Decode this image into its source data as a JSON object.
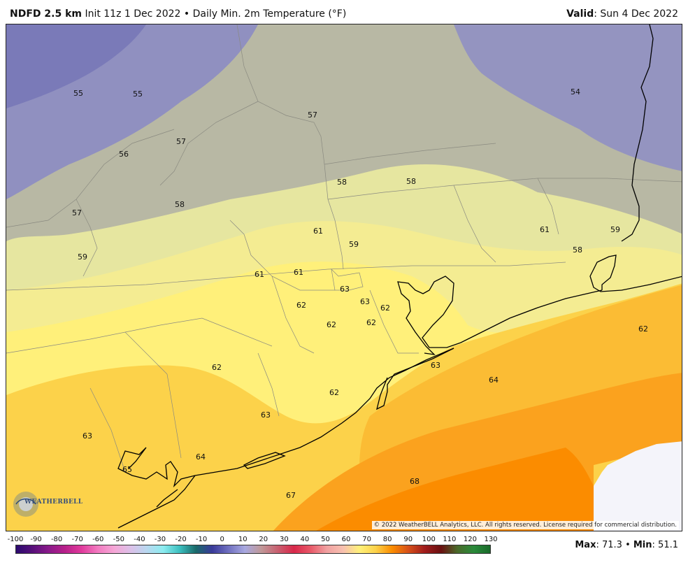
{
  "header": {
    "model": "NDFD 2.5 km",
    "init": "Init 11z 1 Dec 2022",
    "separator": "•",
    "product": "Daily Min. 2m Temperature (°F)",
    "valid_label": "Valid",
    "valid_value": ": Sun 4 Dec 2022"
  },
  "map": {
    "colors": {
      "cold_purple": "#8c8cc8",
      "grey": "#a8a8a0",
      "pale_yellow": "#e6e6a0",
      "yellow": "#fff07a",
      "gold": "#fcd24a",
      "orange": "#fba21e",
      "deep_orange": "#fb8c00",
      "no_data": "#f4f4fa"
    },
    "value_labels": [
      "55",
      "55",
      "54",
      "57",
      "57",
      "56",
      "58",
      "58",
      "57",
      "58",
      "61",
      "61",
      "59",
      "59",
      "58",
      "59",
      "61",
      "61",
      "63",
      "63",
      "62",
      "62",
      "62",
      "62",
      "62",
      "62",
      "63",
      "64",
      "62",
      "63",
      "63",
      "64",
      "65",
      "68",
      "67"
    ],
    "copyright": "© 2022 WeatherBELL Analytics, LLC. All rights reserved. License required for commercial distribution.",
    "logo_text": "WEATHERBELL"
  },
  "legend": {
    "ticks": [
      "-100",
      "-90",
      "-80",
      "-70",
      "-60",
      "-50",
      "-40",
      "-30",
      "-20",
      "-10",
      "0",
      "10",
      "20",
      "30",
      "40",
      "50",
      "60",
      "70",
      "80",
      "90",
      "100",
      "110",
      "120",
      "130"
    ],
    "colors": [
      "#2a0a6e",
      "#58107a",
      "#8a1a8a",
      "#b8208a",
      "#e03a9c",
      "#f27ac0",
      "#f5a6d6",
      "#dcc0e8",
      "#b9d8f0",
      "#8cecf0",
      "#3cc0c0",
      "#1a6a6a",
      "#3a3a9a",
      "#7070c0",
      "#a8a8e0",
      "#c09898",
      "#c86070",
      "#d8284a",
      "#e85868",
      "#f0a0a0",
      "#f8c0b0",
      "#fff07a",
      "#fcd24a",
      "#fb8c00",
      "#d6501a",
      "#a01c1c",
      "#6a1010",
      "#4a6a2a",
      "#2a8a3a",
      "#1a6a2a"
    ]
  },
  "stats": {
    "max_label": "Max",
    "max_value": ": 71.3",
    "separator": " • ",
    "min_label": "Min",
    "min_value": ": 51.1"
  }
}
